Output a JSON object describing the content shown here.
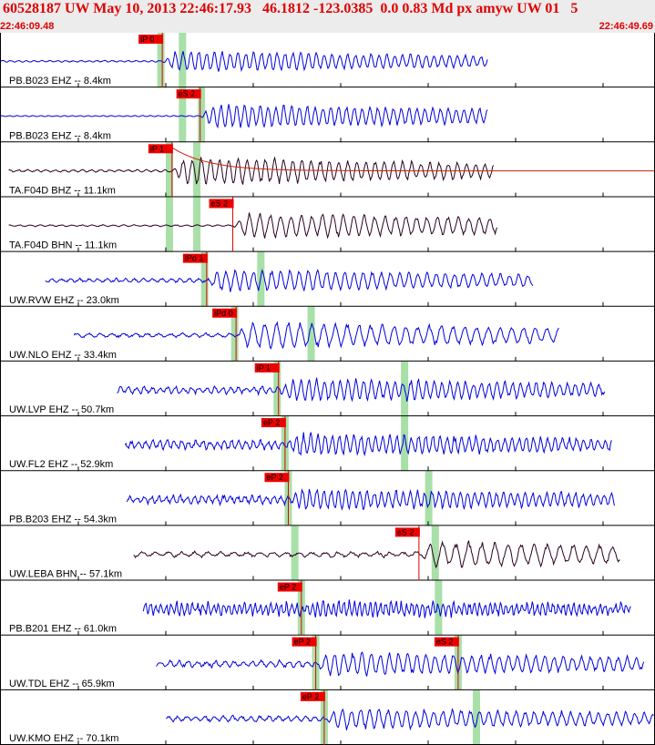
{
  "header": {
    "title": "60528187 UW May 10, 2013 22:46:17.93   46.1812 -123.0385  0.0 0.83 Md px amyw UW 01   5",
    "start_time": "22:46:09.48",
    "end_time": "22:46:49.69"
  },
  "colors": {
    "title": "#e00000",
    "header_bg": "#ececec",
    "trace_blue": "#0000dd",
    "trace_dark": "#2a0020",
    "pick_box": "#ee0000",
    "pick_line": "#dd0000",
    "band_green": "#a8e0a8",
    "coda_red": "#cc2200"
  },
  "chart_data": {
    "type": "line",
    "title": "60528187 UW May 10, 2013 22:46:17.93   46.1812 -123.0385  0.0 0.83 Md px amyw UW 01   5",
    "time_range": [
      "22:46:09.48",
      "22:46:49.69"
    ],
    "traces": [
      {
        "label": "PB.B023 EHZ -- 8.4km",
        "color": "blue",
        "start": 0.0,
        "end": 0.745,
        "amp": 0.42,
        "noise": 0.02,
        "period": 0.012,
        "picks": [
          {
            "label": "iP 0",
            "t": 0.247
          }
        ],
        "bands": [
          0.245,
          0.278
        ]
      },
      {
        "label": "PB.B023 EHZ -- 8.4km",
        "color": "blue",
        "start": 0.0,
        "end": 0.745,
        "amp": 0.48,
        "noise": 0.01,
        "period": 0.012,
        "picks": [
          {
            "label": "eS 2",
            "t": 0.305
          }
        ],
        "bands": [
          0.278,
          0.307
        ]
      },
      {
        "label": "TA.F04D BHZ -- 11.1km",
        "color": "dark",
        "start": 0.012,
        "end": 0.755,
        "amp": 0.55,
        "noise": 0.03,
        "period": 0.014,
        "coda": true,
        "picks": [
          {
            "label": "iP 1",
            "t": 0.262
          }
        ],
        "bands": [
          0.258,
          0.3
        ]
      },
      {
        "label": "TA.F04D BHN -- 11.1km",
        "color": "dark",
        "start": 0.012,
        "end": 0.76,
        "amp": 0.5,
        "noise": 0.02,
        "period": 0.016,
        "picks": [
          {
            "label": "eS 2",
            "t": 0.355
          }
        ],
        "bands": [
          0.258,
          0.3
        ]
      },
      {
        "label": "UW.RVW EHZ -- 23.0km",
        "color": "blue",
        "start": 0.068,
        "end": 0.815,
        "amp": 0.45,
        "noise": 0.06,
        "period": 0.014,
        "picks": [
          {
            "label": "iPd 1",
            "t": 0.315
          }
        ],
        "bands": [
          0.312,
          0.398
        ]
      },
      {
        "label": "UW.NLO EHZ -- 33.4km",
        "color": "blue",
        "start": 0.112,
        "end": 0.855,
        "amp": 0.52,
        "noise": 0.06,
        "period": 0.018,
        "picks": [
          {
            "label": "iPd 0",
            "t": 0.36
          }
        ],
        "bands": [
          0.358,
          0.475
        ]
      },
      {
        "label": "UW.LVP EHZ -- 50.7km",
        "color": "blue",
        "start": 0.178,
        "end": 0.925,
        "amp": 0.45,
        "noise": 0.12,
        "period": 0.012,
        "picks": [
          {
            "label": "iP 1",
            "t": 0.425
          }
        ],
        "bands": [
          0.423,
          0.618
        ]
      },
      {
        "label": "UW.FL2 EHZ -- 52.9km",
        "color": "blue",
        "start": 0.19,
        "end": 0.935,
        "amp": 0.42,
        "noise": 0.14,
        "period": 0.011,
        "picks": [
          {
            "label": "eP 2",
            "t": 0.435
          }
        ],
        "bands": [
          0.435,
          0.618
        ]
      },
      {
        "label": "PB.B203 EHZ -- 54.3km",
        "color": "blue",
        "start": 0.193,
        "end": 0.94,
        "amp": 0.42,
        "noise": 0.13,
        "period": 0.011,
        "picks": [
          {
            "label": "eP 2",
            "t": 0.44
          }
        ],
        "bands": [
          0.44,
          0.655
        ]
      },
      {
        "label": "UW.LEBA BHN -- 57.1km",
        "color": "dark",
        "start": 0.203,
        "end": 0.948,
        "amp": 0.5,
        "noise": 0.08,
        "period": 0.02,
        "picks": [
          {
            "label": "eS 2",
            "t": 0.64
          }
        ],
        "bands": [
          0.45,
          0.665
        ]
      },
      {
        "label": "PB.B201 EHZ -- 61.0km",
        "color": "blue",
        "start": 0.218,
        "end": 0.965,
        "amp": 0.32,
        "noise": 0.2,
        "period": 0.008,
        "picks": [
          {
            "label": "eP 2",
            "t": 0.46
          }
        ],
        "bands": [
          0.46,
          0.67
        ]
      },
      {
        "label": "UW.TDL EHZ -- 65.9km",
        "color": "blue",
        "start": 0.238,
        "end": 0.985,
        "amp": 0.48,
        "noise": 0.1,
        "period": 0.014,
        "picks": [
          {
            "label": "eP 2",
            "t": 0.482
          },
          {
            "label": "eS 2",
            "t": 0.7
          }
        ],
        "bands": [
          0.482,
          0.7
        ]
      },
      {
        "label": "UW.KMO EHZ -- 70.1km",
        "color": "blue",
        "start": 0.253,
        "end": 1.0,
        "amp": 0.42,
        "noise": 0.08,
        "period": 0.014,
        "picks": [
          {
            "label": "eP 2",
            "t": 0.495
          }
        ],
        "bands": [
          0.495,
          0.728
        ]
      }
    ]
  }
}
